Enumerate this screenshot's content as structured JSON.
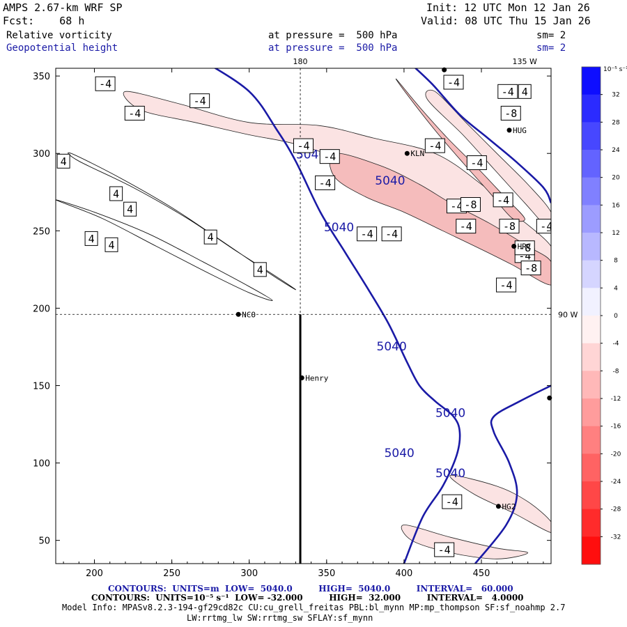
{
  "header": {
    "model": "AMPS 2.67-km WRF SP",
    "forecast": "Fcst:    68 h",
    "init": "Init: 12 UTC Mon 12 Jan 26",
    "valid": "Valid: 08 UTC Thu 15 Jan 26",
    "field1_name": "Relative vorticity",
    "field1_level": "at pressure =  500 hPa",
    "field1_smooth": "sm= 2",
    "field2_name": "Geopotential height",
    "field2_level": "at pressure =  500 hPa",
    "field2_smooth": "sm= 2"
  },
  "footer": {
    "contours_height": "CONTOURS:  UNITS=m  LOW=  5040.0         HIGH=  5040.0         INTERVAL=   60.000",
    "contours_vort": "CONTOURS:  UNITS=10⁻⁵ s⁻¹  LOW= -32.000         HIGH=  32.000         INTERVAL=   4.0000",
    "model_info": "Model Info: MPASv8.2.3-194-gf29cd82c CU:cu_grell_freitas PBL:bl_mynn MP:mp_thompson SF:sf_noahmp 2.7",
    "model_info2": "LW:rrtmg_lw SW:rrtmg_sw SFLAY:sf_mynn"
  },
  "colors": {
    "height_contour": "#1a1aa6",
    "negative_fill_light": "#fbe3e3",
    "negative_fill_mid": "#f5bcbc",
    "negative_fill_dark": "#ee9c9c",
    "positive_fill": "#e6e6ff"
  },
  "chart_data": {
    "type": "contour-map",
    "xlim": [
      175,
      495
    ],
    "ylim": [
      35,
      355
    ],
    "x_ticks": [
      200,
      250,
      300,
      350,
      400,
      450
    ],
    "y_ticks": [
      50,
      100,
      150,
      200,
      250,
      300,
      350
    ],
    "top_labels": [
      {
        "text": "180",
        "x": 333
      },
      {
        "text": "135 W",
        "x": 478
      }
    ],
    "right_labels": [
      {
        "text": "90 W",
        "y": 196
      }
    ],
    "meridian_180_x": 333,
    "parallel_y": 196,
    "cross_section": {
      "x": 333,
      "y_from": 35,
      "y_to": 196
    },
    "height_contour_value": 5040,
    "height_contours": [
      [
        [
          270,
          360
        ],
        [
          300,
          340
        ],
        [
          318,
          315
        ],
        [
          330,
          295
        ],
        [
          346,
          262
        ],
        [
          362,
          236
        ],
        [
          377,
          212
        ],
        [
          390,
          190
        ],
        [
          402,
          165
        ],
        [
          410,
          150
        ],
        [
          420,
          140
        ],
        [
          432,
          130
        ],
        [
          436,
          120
        ],
        [
          434,
          105
        ],
        [
          425,
          85
        ],
        [
          412,
          65
        ],
        [
          400,
          35
        ]
      ],
      [
        [
          402,
          360
        ],
        [
          418,
          345
        ],
        [
          436,
          325
        ],
        [
          454,
          310
        ],
        [
          472,
          295
        ],
        [
          490,
          278
        ],
        [
          495,
          268
        ]
      ],
      [
        [
          446,
          35
        ],
        [
          466,
          60
        ],
        [
          473,
          80
        ],
        [
          468,
          100
        ],
        [
          458,
          120
        ],
        [
          458,
          130
        ],
        [
          475,
          140
        ],
        [
          495,
          150
        ]
      ]
    ],
    "height_labels": [
      {
        "text": "5040",
        "x": 340,
        "y": 299
      },
      {
        "text": "5040",
        "x": 358,
        "y": 252
      },
      {
        "text": "5040",
        "x": 392,
        "y": 175
      },
      {
        "text": "5040",
        "x": 397,
        "y": 106
      },
      {
        "text": "5040",
        "x": 430,
        "y": 132
      },
      {
        "text": "5040",
        "x": 430,
        "y": 93
      },
      {
        "text": "5040",
        "x": 391,
        "y": 282
      }
    ],
    "vorticity_negative_bands": [
      [
        [
          220,
          340
        ],
        [
          255,
          332
        ],
        [
          300,
          320
        ],
        [
          345,
          318
        ],
        [
          380,
          310
        ],
        [
          420,
          300
        ],
        [
          450,
          280
        ],
        [
          470,
          262
        ],
        [
          495,
          240
        ],
        [
          495,
          225
        ],
        [
          470,
          240
        ],
        [
          445,
          255
        ],
        [
          420,
          268
        ],
        [
          390,
          280
        ],
        [
          365,
          294
        ],
        [
          330,
          306
        ],
        [
          300,
          312
        ],
        [
          265,
          320
        ],
        [
          230,
          328
        ]
      ],
      [
        [
          355,
          300
        ],
        [
          385,
          292
        ],
        [
          410,
          280
        ],
        [
          430,
          268
        ],
        [
          455,
          255
        ],
        [
          480,
          240
        ],
        [
          495,
          230
        ],
        [
          495,
          215
        ],
        [
          470,
          228
        ],
        [
          450,
          238
        ],
        [
          425,
          250
        ],
        [
          400,
          262
        ],
        [
          375,
          272
        ],
        [
          355,
          285
        ]
      ],
      [
        [
          420,
          340
        ],
        [
          440,
          320
        ],
        [
          460,
          300
        ],
        [
          480,
          280
        ],
        [
          495,
          262
        ],
        [
          495,
          250
        ],
        [
          478,
          268
        ],
        [
          458,
          290
        ],
        [
          438,
          312
        ],
        [
          415,
          335
        ]
      ],
      [
        [
          395,
          348
        ],
        [
          410,
          330
        ],
        [
          428,
          310
        ],
        [
          448,
          290
        ],
        [
          465,
          272
        ],
        [
          478,
          258
        ],
        [
          470,
          258
        ],
        [
          455,
          275
        ],
        [
          438,
          294
        ],
        [
          420,
          315
        ],
        [
          402,
          338
        ]
      ],
      [
        [
          430,
          92
        ],
        [
          460,
          85
        ],
        [
          480,
          75
        ],
        [
          495,
          62
        ],
        [
          495,
          55
        ],
        [
          470,
          68
        ],
        [
          445,
          80
        ]
      ],
      [
        [
          400,
          60
        ],
        [
          430,
          52
        ],
        [
          460,
          45
        ],
        [
          480,
          42
        ],
        [
          460,
          38
        ],
        [
          430,
          42
        ],
        [
          405,
          50
        ]
      ]
    ],
    "vorticity_positive_lines": [
      [
        [
          185,
          300
        ],
        [
          215,
          285
        ],
        [
          250,
          265
        ],
        [
          280,
          245
        ],
        [
          305,
          228
        ],
        [
          320,
          218
        ],
        [
          330,
          212
        ],
        [
          315,
          222
        ],
        [
          290,
          238
        ],
        [
          260,
          258
        ],
        [
          225,
          278
        ],
        [
          190,
          295
        ]
      ],
      [
        [
          175,
          270
        ],
        [
          205,
          258
        ],
        [
          240,
          240
        ],
        [
          275,
          222
        ],
        [
          300,
          210
        ],
        [
          315,
          205
        ],
        [
          300,
          214
        ],
        [
          270,
          230
        ],
        [
          235,
          248
        ],
        [
          200,
          262
        ]
      ]
    ],
    "vorticity_labels": [
      {
        "text": "-4",
        "x": 207,
        "y": 345
      },
      {
        "text": "-4",
        "x": 226,
        "y": 326
      },
      {
        "text": "-4",
        "x": 268,
        "y": 334
      },
      {
        "text": "-4",
        "x": 335,
        "y": 305
      },
      {
        "text": "-4",
        "x": 352,
        "y": 298
      },
      {
        "text": "-4",
        "x": 349,
        "y": 281
      },
      {
        "text": "-4",
        "x": 392,
        "y": 248
      },
      {
        "text": "-4",
        "x": 376,
        "y": 248
      },
      {
        "text": "-4",
        "x": 420,
        "y": 305
      },
      {
        "text": "-4",
        "x": 434,
        "y": 266
      },
      {
        "text": "-4",
        "x": 447,
        "y": 294
      },
      {
        "text": "-4",
        "x": 464,
        "y": 270
      },
      {
        "text": "-4",
        "x": 440,
        "y": 253
      },
      {
        "text": "-4",
        "x": 432,
        "y": 346
      },
      {
        "text": "-4",
        "x": 467,
        "y": 340
      },
      {
        "text": "-4",
        "x": 478,
        "y": 234
      },
      {
        "text": "-4",
        "x": 492,
        "y": 253
      },
      {
        "text": "-4",
        "x": 466,
        "y": 215
      },
      {
        "text": "-4",
        "x": 431,
        "y": 75
      },
      {
        "text": "-4",
        "x": 426,
        "y": 44
      },
      {
        "text": "-8",
        "x": 469,
        "y": 326
      },
      {
        "text": "-8",
        "x": 443,
        "y": 267
      },
      {
        "text": "-8",
        "x": 468,
        "y": 253
      },
      {
        "text": "-8",
        "x": 478,
        "y": 239
      },
      {
        "text": "-8",
        "x": 482,
        "y": 226
      },
      {
        "text": "4",
        "x": 478,
        "y": 340
      },
      {
        "text": "4",
        "x": 180,
        "y": 295
      },
      {
        "text": "4",
        "x": 214,
        "y": 274
      },
      {
        "text": "4",
        "x": 223,
        "y": 264
      },
      {
        "text": "4",
        "x": 198,
        "y": 245
      },
      {
        "text": "4",
        "x": 211,
        "y": 241
      },
      {
        "text": "4",
        "x": 275,
        "y": 246
      },
      {
        "text": "4",
        "x": 307,
        "y": 225
      }
    ],
    "stations": [
      {
        "name": "HUG",
        "x": 468,
        "y": 315
      },
      {
        "name": "KLN",
        "x": 402,
        "y": 300
      },
      {
        "name": "HRC",
        "x": 471,
        "y": 240
      },
      {
        "name": "NCO",
        "x": 293,
        "y": 196
      },
      {
        "name": "Henry",
        "x": 334,
        "y": 155
      },
      {
        "name": "HG2",
        "x": 461,
        "y": 72
      },
      {
        "name": "",
        "x": 426,
        "y": 354
      },
      {
        "name": "",
        "x": 494,
        "y": 142
      }
    ],
    "colorbar": {
      "unit": "10⁻⁵ s⁻¹",
      "levels": [
        -36,
        -32,
        -28,
        -24,
        -20,
        -16,
        -12,
        -8,
        -4,
        0,
        4,
        8,
        12,
        16,
        20,
        24,
        28,
        32,
        36
      ],
      "labels": [
        "32",
        "28",
        "24",
        "20",
        "16",
        "12",
        "8",
        "4",
        "0",
        "-4",
        "-8",
        "-12",
        "-16",
        "-20",
        "-24",
        "-28",
        "-32"
      ]
    }
  }
}
